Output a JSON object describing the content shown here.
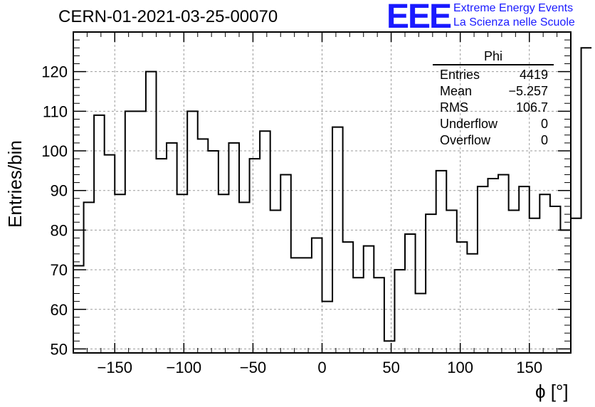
{
  "header": {
    "run_title": "CERN-01-2021-03-25-00070",
    "logo_text": "EEE",
    "logo_line1": "Extreme Energy Events",
    "logo_line2": "La Scienza nelle Scuole"
  },
  "stats_box": {
    "title": "Phi",
    "rows": [
      {
        "label": "Entries",
        "value": "4419"
      },
      {
        "label": "Mean",
        "value": "−5.257"
      },
      {
        "label": "RMS",
        "value": "106.7"
      },
      {
        "label": "Underflow",
        "value": "0"
      },
      {
        "label": "Overflow",
        "value": "0"
      }
    ]
  },
  "chart_data": {
    "type": "bar",
    "histogram": "step",
    "xlabel": "ϕ [°]",
    "ylabel": "Entries/bin",
    "xlim": [
      -180,
      180
    ],
    "ylim": [
      49,
      130
    ],
    "bin_width": 7.5,
    "bin_low_edge": -180,
    "values": [
      71,
      87,
      109,
      99,
      89,
      110,
      110,
      120,
      98,
      102,
      89,
      110,
      103,
      100,
      89,
      102,
      87,
      98,
      105,
      85,
      94,
      73,
      73,
      78,
      62,
      106,
      77,
      68,
      76,
      68,
      52,
      70,
      79,
      64,
      84,
      95,
      85,
      77,
      74,
      91,
      93,
      94,
      85,
      91,
      83,
      89,
      86,
      80,
      83,
      126
    ],
    "x_ticks": [
      -150,
      -100,
      -50,
      0,
      50,
      100,
      150
    ],
    "x_tick_labels": [
      "−150",
      "−100",
      "−50",
      "0",
      "50",
      "100",
      "150"
    ],
    "y_ticks": [
      50,
      60,
      70,
      80,
      90,
      100,
      110,
      120
    ],
    "y_tick_labels": [
      "50",
      "60",
      "70",
      "80",
      "90",
      "100",
      "110",
      "120"
    ],
    "grid": true,
    "line_color": "#000000",
    "grid_color": "#9a9a9a"
  }
}
